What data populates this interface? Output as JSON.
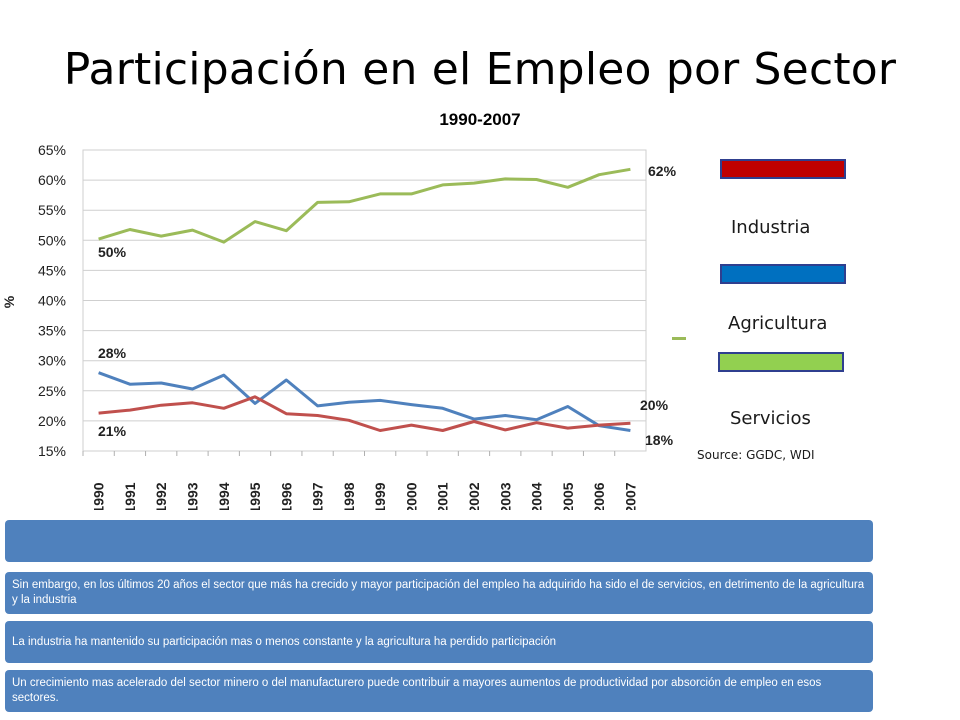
{
  "title": "Participación en el Empleo por Sector",
  "subtitle": "1990-2007",
  "source": "Source: GGDC, WDI",
  "legend": [
    {
      "label": "Industria",
      "color": "#c00000"
    },
    {
      "label": "Agricultura",
      "color": "#0070c0"
    },
    {
      "label": "Servicios",
      "color": "#92d050"
    }
  ],
  "bullets": [
    "",
    "Sin embargo, en los últimos 20 años el sector que más ha crecido y  mayor participación del empleo ha adquirido ha sido el de servicios, en detrimento de la agricultura y la industria",
    "La industria ha mantenido su participación mas o menos constante y la agricultura ha perdido participación",
    " Un crecimiento mas acelerado del sector minero o del manufacturero puede contribuir a mayores aumentos de productividad por absorción de empleo en esos sectores."
  ],
  "chart_data": {
    "type": "line",
    "title": "",
    "xlabel": "",
    "ylabel": "%",
    "ylim": [
      15,
      65
    ],
    "y_ticks": [
      "15%",
      "20%",
      "25%",
      "30%",
      "35%",
      "40%",
      "45%",
      "50%",
      "55%",
      "60%",
      "65%"
    ],
    "grid": true,
    "categories": [
      "1990",
      "1991",
      "1992",
      "1993",
      "1994",
      "1995",
      "1996",
      "1997",
      "1998",
      "1999",
      "2000",
      "2001",
      "2002",
      "2003",
      "2004",
      "2005",
      "2006",
      "2007"
    ],
    "series": [
      {
        "color": "#9bbb59",
        "values": [
          50.2,
          51.8,
          50.7,
          51.7,
          49.7,
          53.1,
          51.6,
          56.3,
          56.4,
          57.7,
          57.7,
          59.2,
          59.5,
          60.2,
          60.1,
          58.8,
          60.9,
          61.8
        ]
      },
      {
        "color": "#4f81bd",
        "values": [
          28.0,
          26.1,
          26.3,
          25.3,
          27.6,
          22.9,
          26.8,
          22.5,
          23.1,
          23.4,
          22.7,
          22.1,
          20.3,
          20.9,
          20.2,
          22.4,
          19.2,
          18.4
        ]
      },
      {
        "color": "#c0504d",
        "values": [
          21.3,
          21.8,
          22.6,
          23.0,
          22.1,
          24.0,
          21.2,
          20.9,
          20.1,
          18.4,
          19.3,
          18.4,
          19.9,
          18.5,
          19.7,
          18.8,
          19.3,
          19.6
        ]
      }
    ],
    "annotations": [
      "50%",
      "62%",
      "28%",
      "18%",
      "21%",
      "20%"
    ]
  }
}
